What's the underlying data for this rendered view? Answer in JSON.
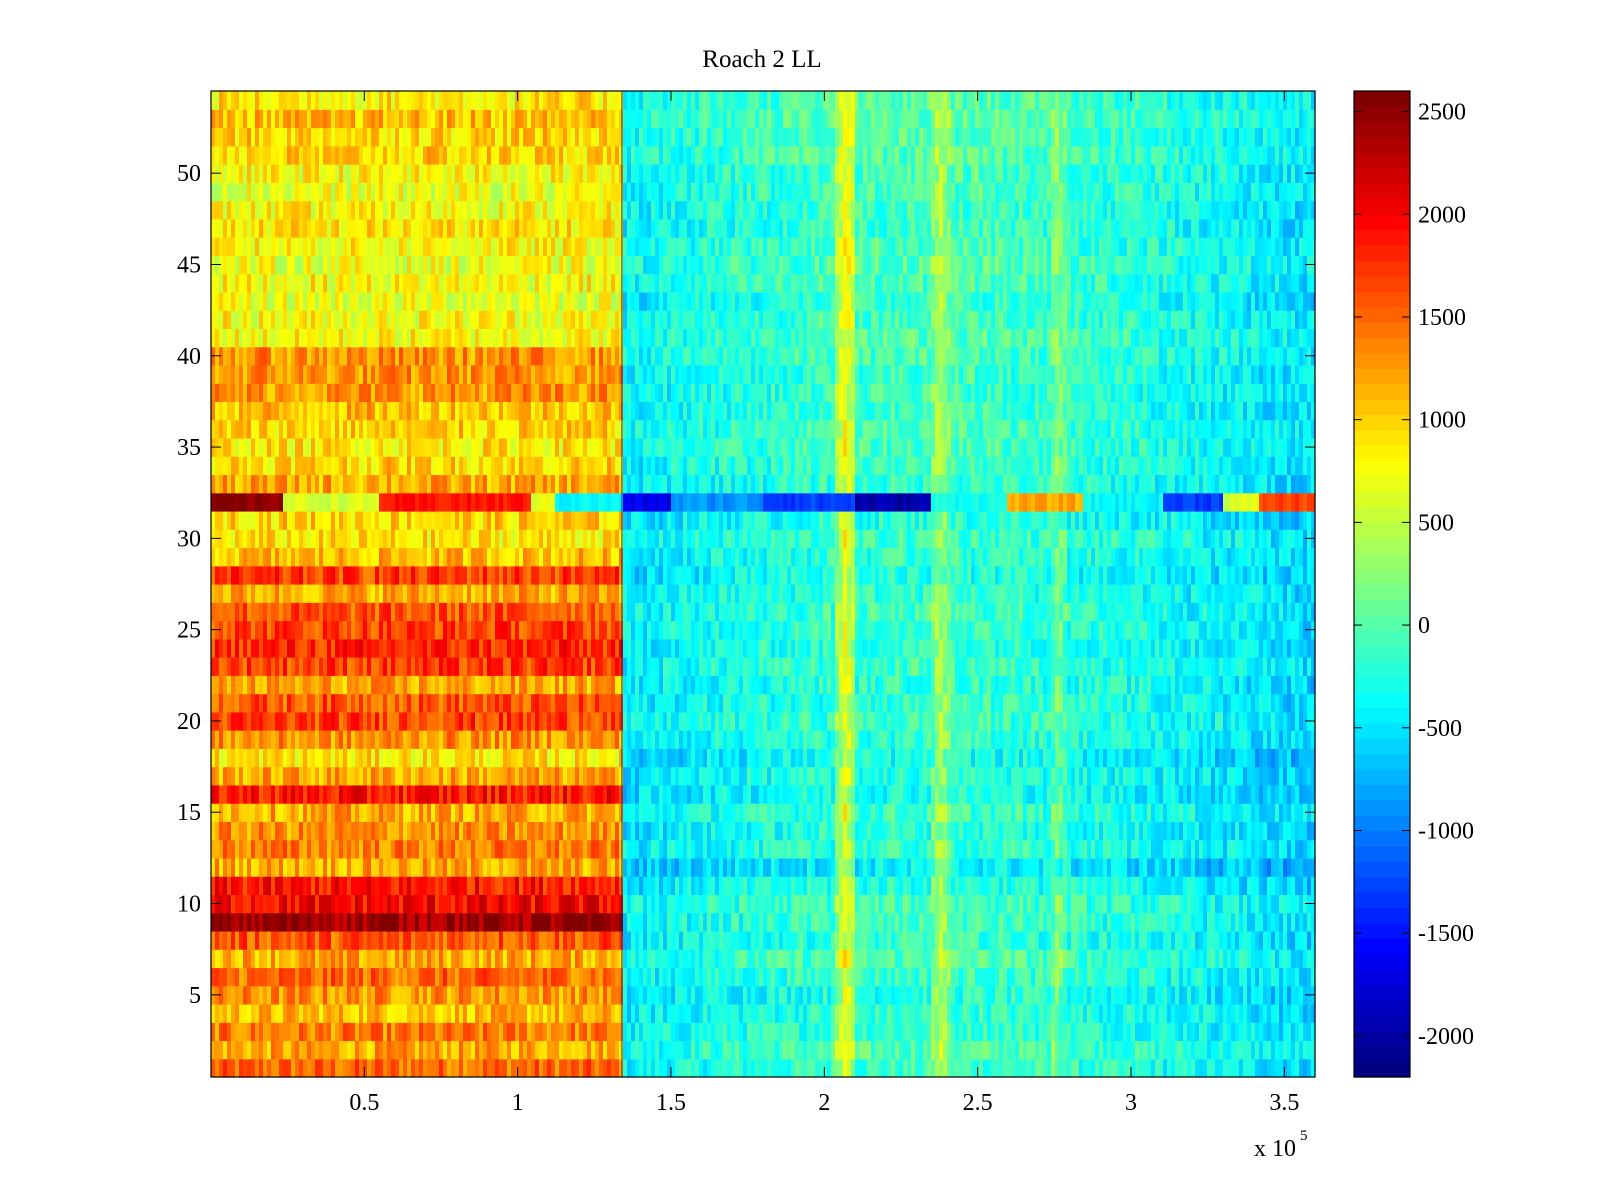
{
  "chart_data": {
    "type": "heatmap",
    "title": "Roach 2 LL",
    "xlabel": "",
    "ylabel": "",
    "x_exponent_label": "x 10",
    "x_exponent_power": "5",
    "xlim": [
      0,
      3.6
    ],
    "ylim": [
      0.5,
      54.5
    ],
    "xticks": [
      0.5,
      1,
      1.5,
      2,
      2.5,
      3,
      3.5
    ],
    "xtick_labels": [
      "0.5",
      "1",
      "1.5",
      "2",
      "2.5",
      "3",
      "3.5"
    ],
    "yticks": [
      5,
      10,
      15,
      20,
      25,
      30,
      35,
      40,
      45,
      50
    ],
    "ytick_labels": [
      "5",
      "10",
      "15",
      "20",
      "25",
      "30",
      "35",
      "40",
      "45",
      "50"
    ],
    "rows": 54,
    "x_unit_scale": 100000,
    "colormap": "jet",
    "clim": [
      -2200,
      2600
    ],
    "colorbar_ticks": [
      2500,
      2000,
      1500,
      1000,
      500,
      0,
      -500,
      -1000,
      -1500,
      -2000
    ],
    "colorbar_labels": [
      "2500",
      "2000",
      "1500",
      "1000",
      "500",
      "0",
      "-500",
      "-1000",
      "-1500",
      "-2000"
    ],
    "x_boundary": 1.34,
    "row_values_left": [
      1500,
      1200,
      1400,
      1100,
      1300,
      1500,
      1200,
      1600,
      2500,
      2000,
      1900,
      1200,
      1400,
      1300,
      1200,
      1900,
      1200,
      900,
      1300,
      1700,
      1600,
      1200,
      1700,
      1800,
      1700,
      1600,
      1200,
      1700,
      1100,
      900,
      1000,
      2000,
      1200,
      1000,
      900,
      1000,
      1100,
      1300,
      1300,
      1300,
      800,
      800,
      700,
      800,
      700,
      800,
      900,
      800,
      700,
      800,
      1000,
      1000,
      1100,
      900
    ],
    "row_values_right": [
      -300,
      -200,
      -300,
      -350,
      -400,
      -300,
      -200,
      -350,
      -300,
      -250,
      -400,
      -600,
      -350,
      -400,
      -300,
      -450,
      -400,
      -500,
      -350,
      -300,
      -350,
      -350,
      -300,
      -350,
      -300,
      -300,
      -350,
      -450,
      -350,
      -300,
      -400,
      -1000,
      -350,
      -300,
      -250,
      -250,
      -300,
      -300,
      -300,
      -250,
      -200,
      -250,
      -350,
      -250,
      -200,
      -250,
      -300,
      -300,
      -250,
      -250,
      -200,
      -200,
      -150,
      -200
    ],
    "column_trend": [
      {
        "x": 1.34,
        "offset": -150
      },
      {
        "x": 1.6,
        "offset": 0
      },
      {
        "x": 2.0,
        "offset": 150
      },
      {
        "x": 2.5,
        "offset": 200
      },
      {
        "x": 3.0,
        "offset": 50
      },
      {
        "x": 3.6,
        "offset": -250
      }
    ],
    "vertical_stripes": [
      {
        "x_center": 2.07,
        "half_width": 0.03,
        "offset": 900
      },
      {
        "x_center": 2.38,
        "half_width": 0.03,
        "offset": 500
      },
      {
        "x_center": 2.76,
        "half_width": 0.025,
        "offset": 350
      }
    ],
    "row32_segments": [
      {
        "x0": 0.0,
        "x1": 0.23,
        "value": 2550
      },
      {
        "x0": 0.23,
        "x1": 0.55,
        "value": 600
      },
      {
        "x0": 0.55,
        "x1": 1.05,
        "value": 1900
      },
      {
        "x0": 1.05,
        "x1": 1.12,
        "value": 700
      },
      {
        "x0": 1.12,
        "x1": 1.34,
        "value": -400
      },
      {
        "x0": 1.34,
        "x1": 1.5,
        "value": -1700
      },
      {
        "x0": 1.5,
        "x1": 1.8,
        "value": -900
      },
      {
        "x0": 1.8,
        "x1": 2.1,
        "value": -1300
      },
      {
        "x0": 2.1,
        "x1": 2.35,
        "value": -2000
      },
      {
        "x0": 2.35,
        "x1": 2.6,
        "value": -300
      },
      {
        "x0": 2.6,
        "x1": 2.85,
        "value": 1200
      },
      {
        "x0": 2.85,
        "x1": 3.1,
        "value": -400
      },
      {
        "x0": 3.1,
        "x1": 3.3,
        "value": -1300
      },
      {
        "x0": 3.3,
        "x1": 3.42,
        "value": 600
      },
      {
        "x0": 3.42,
        "x1": 3.6,
        "value": 1700
      }
    ]
  }
}
